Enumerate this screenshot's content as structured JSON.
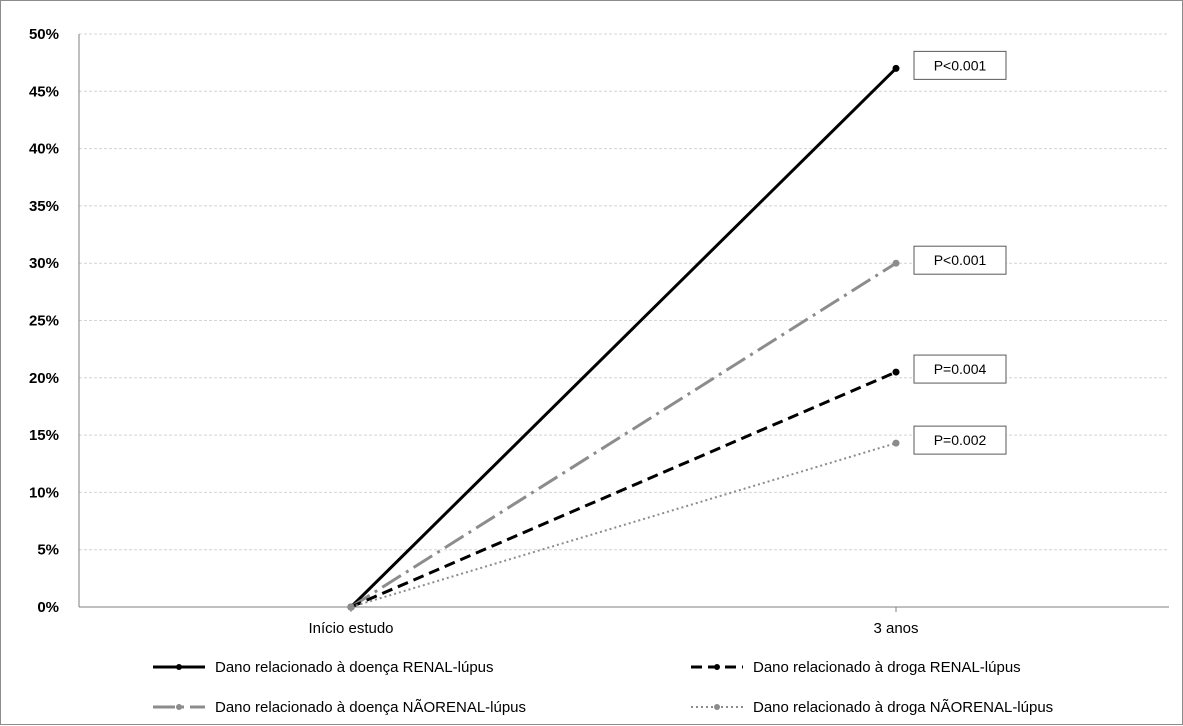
{
  "chart_data": {
    "type": "line",
    "categories": [
      "Início estudo",
      "3 anos"
    ],
    "y_ticks": [
      "0%",
      "5%",
      "10%",
      "15%",
      "20%",
      "25%",
      "30%",
      "35%",
      "40%",
      "45%",
      "50%"
    ],
    "ylim": [
      0,
      50
    ],
    "grid": true,
    "legend_position": "bottom",
    "series": [
      {
        "name": "Dano relacionado à doença RENAL-lúpus",
        "values": [
          0,
          47
        ],
        "color": "#000000",
        "style": "solid",
        "annotation": "P<0.001"
      },
      {
        "name": "Dano relacionado à doença NÃORENAL-lúpus",
        "values": [
          0,
          30
        ],
        "color": "#8c8c8c",
        "style": "dash-dot",
        "annotation": "P<0.001"
      },
      {
        "name": "Dano relacionado à droga RENAL-lúpus",
        "values": [
          0,
          20.5
        ],
        "color": "#000000",
        "style": "dashed",
        "annotation": "P=0.004"
      },
      {
        "name": "Dano relacionado à droga NÃORENAL-lúpus",
        "values": [
          0,
          14.3
        ],
        "color": "#8c8c8c",
        "style": "dotted",
        "annotation": "P=0.002"
      }
    ]
  }
}
